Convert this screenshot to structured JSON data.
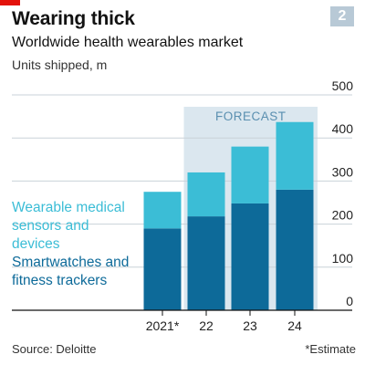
{
  "header": {
    "title": "Wearing thick",
    "page_number": "2"
  },
  "footer": {
    "source": "Source: Deloitte",
    "note": "*Estimate"
  },
  "colors": {
    "accent_red": "#e3120b",
    "dark_series": "#0d6a99",
    "light_series": "#3bbdd6",
    "forecast_band": "#dbe7ef",
    "grid": "#c9d2d8"
  },
  "chart_data": {
    "type": "bar",
    "stacked": true,
    "title": "Worldwide health wearables market",
    "ylabel": "Units shipped, m",
    "categories": [
      "2021*",
      "22",
      "23",
      "24"
    ],
    "series": [
      {
        "name": "Smartwatches and fitness trackers",
        "color": "#0d6a99",
        "values": [
          190,
          218,
          248,
          280
        ]
      },
      {
        "name": "Wearable medical sensors and devices",
        "color": "#3bbdd6",
        "values": [
          85,
          102,
          132,
          157
        ]
      }
    ],
    "ylim": [
      0,
      500
    ],
    "yticks": [
      0,
      100,
      200,
      300,
      400,
      500
    ],
    "y_axis_side": "right",
    "grid": true,
    "forecast": {
      "label": "FORECAST",
      "from": "22",
      "to": "24"
    },
    "legend": "inline-left"
  }
}
